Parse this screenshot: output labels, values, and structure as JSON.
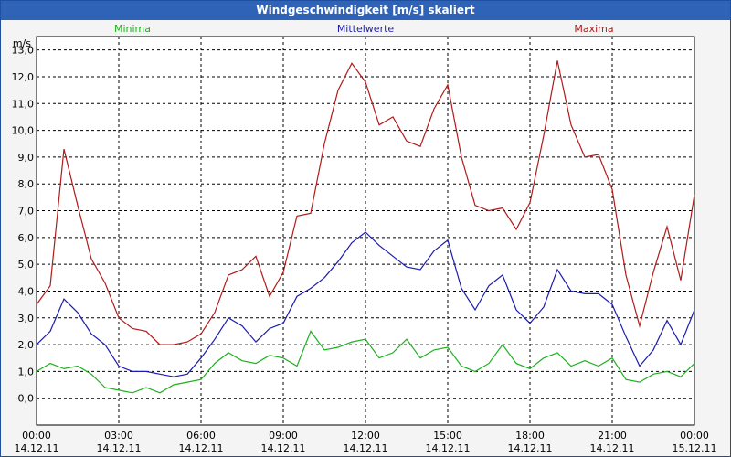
{
  "window": {
    "title": "Windgeschwindigkeit [m/s] skaliert"
  },
  "chart_data": {
    "type": "line",
    "title": "Windgeschwindigkeit [m/s] skaliert",
    "ylabel": "m/s",
    "ylim": [
      -1.0,
      13.5
    ],
    "yticks": [
      0.0,
      1.0,
      2.0,
      3.0,
      4.0,
      5.0,
      6.0,
      7.0,
      8.0,
      9.0,
      10.0,
      11.0,
      12.0,
      13.0
    ],
    "ytick_labels": [
      "0,0",
      "1,0",
      "2,0",
      "3,0",
      "4,0",
      "5,0",
      "6,0",
      "7,0",
      "8,0",
      "9,0",
      "10,0",
      "11,0",
      "12,0",
      "13,0"
    ],
    "xlim": [
      0,
      24
    ],
    "xticks": [
      0,
      3,
      6,
      9,
      12,
      15,
      18,
      21,
      24
    ],
    "xtick_times": [
      "00:00",
      "03:00",
      "06:00",
      "09:00",
      "12:00",
      "15:00",
      "18:00",
      "21:00",
      "00:00"
    ],
    "xtick_dates": [
      "14.12.11",
      "14.12.11",
      "14.12.11",
      "14.12.11",
      "14.12.11",
      "14.12.11",
      "14.12.11",
      "14.12.11",
      "15.12.11"
    ],
    "grid": true,
    "legend_position": "top",
    "series": [
      {
        "name": "Minima",
        "color": "#1fb01f",
        "x": [
          0,
          0.5,
          1,
          1.5,
          2,
          2.5,
          3,
          3.5,
          4,
          4.5,
          5,
          5.5,
          6,
          6.5,
          7,
          7.5,
          8,
          8.5,
          9,
          9.5,
          10,
          10.5,
          11,
          11.5,
          12,
          12.5,
          13,
          13.5,
          14,
          14.5,
          15,
          15.5,
          16,
          16.5,
          17,
          17.5,
          18,
          18.5,
          19,
          19.5,
          20,
          20.5,
          21,
          21.5,
          22,
          22.5,
          23,
          23.5,
          24
        ],
        "values": [
          1.0,
          1.3,
          1.1,
          1.2,
          0.9,
          0.4,
          0.3,
          0.2,
          0.4,
          0.2,
          0.5,
          0.6,
          0.7,
          1.3,
          1.7,
          1.4,
          1.3,
          1.6,
          1.5,
          1.2,
          2.5,
          1.8,
          1.9,
          2.1,
          2.2,
          1.5,
          1.7,
          2.2,
          1.5,
          1.8,
          1.9,
          1.2,
          1.0,
          1.3,
          2.0,
          1.3,
          1.1,
          1.5,
          1.7,
          1.2,
          1.4,
          1.2,
          1.5,
          0.7,
          0.6,
          0.9,
          1.0,
          0.8,
          1.3
        ]
      },
      {
        "name": "Mittelwerte",
        "color": "#1c1cb0",
        "x": [
          0,
          0.5,
          1,
          1.5,
          2,
          2.5,
          3,
          3.5,
          4,
          4.5,
          5,
          5.5,
          6,
          6.5,
          7,
          7.5,
          8,
          8.5,
          9,
          9.5,
          10,
          10.5,
          11,
          11.5,
          12,
          12.5,
          13,
          13.5,
          14,
          14.5,
          15,
          15.5,
          16,
          16.5,
          17,
          17.5,
          18,
          18.5,
          19,
          19.5,
          20,
          20.5,
          21,
          21.5,
          22,
          22.5,
          23,
          23.5,
          24
        ],
        "values": [
          2.0,
          2.5,
          3.7,
          3.2,
          2.4,
          2.0,
          1.2,
          1.0,
          1.0,
          0.9,
          0.8,
          0.9,
          1.5,
          2.2,
          3.0,
          2.7,
          2.1,
          2.6,
          2.8,
          3.8,
          4.1,
          4.5,
          5.1,
          5.8,
          6.2,
          5.7,
          5.3,
          4.9,
          4.8,
          5.5,
          5.9,
          4.1,
          3.3,
          4.2,
          4.6,
          3.3,
          2.8,
          3.4,
          4.8,
          4.0,
          3.9,
          3.9,
          3.5,
          2.3,
          1.2,
          1.8,
          2.9,
          2.0,
          3.3
        ]
      },
      {
        "name": "Maxima",
        "color": "#b01a1a",
        "x": [
          0,
          0.5,
          1,
          1.5,
          2,
          2.5,
          3,
          3.5,
          4,
          4.5,
          5,
          5.5,
          6,
          6.5,
          7,
          7.5,
          8,
          8.5,
          9,
          9.5,
          10,
          10.5,
          11,
          11.5,
          12,
          12.5,
          13,
          13.5,
          14,
          14.5,
          15,
          15.5,
          16,
          16.5,
          17,
          17.5,
          18,
          18.5,
          19,
          19.5,
          20,
          20.5,
          21,
          21.5,
          22,
          22.5,
          23,
          23.5,
          24
        ],
        "values": [
          3.5,
          4.2,
          9.3,
          7.2,
          5.2,
          4.3,
          3.0,
          2.6,
          2.5,
          2.0,
          2.0,
          2.1,
          2.4,
          3.2,
          4.6,
          4.8,
          5.3,
          3.8,
          4.7,
          6.8,
          6.9,
          9.5,
          11.5,
          12.5,
          11.8,
          10.2,
          10.5,
          9.6,
          9.4,
          10.8,
          11.7,
          9.0,
          7.2,
          7.0,
          7.1,
          6.3,
          7.3,
          9.8,
          12.6,
          10.2,
          9.0,
          9.1,
          7.8,
          4.6,
          2.7,
          4.7,
          6.4,
          4.4,
          7.6
        ]
      }
    ]
  }
}
